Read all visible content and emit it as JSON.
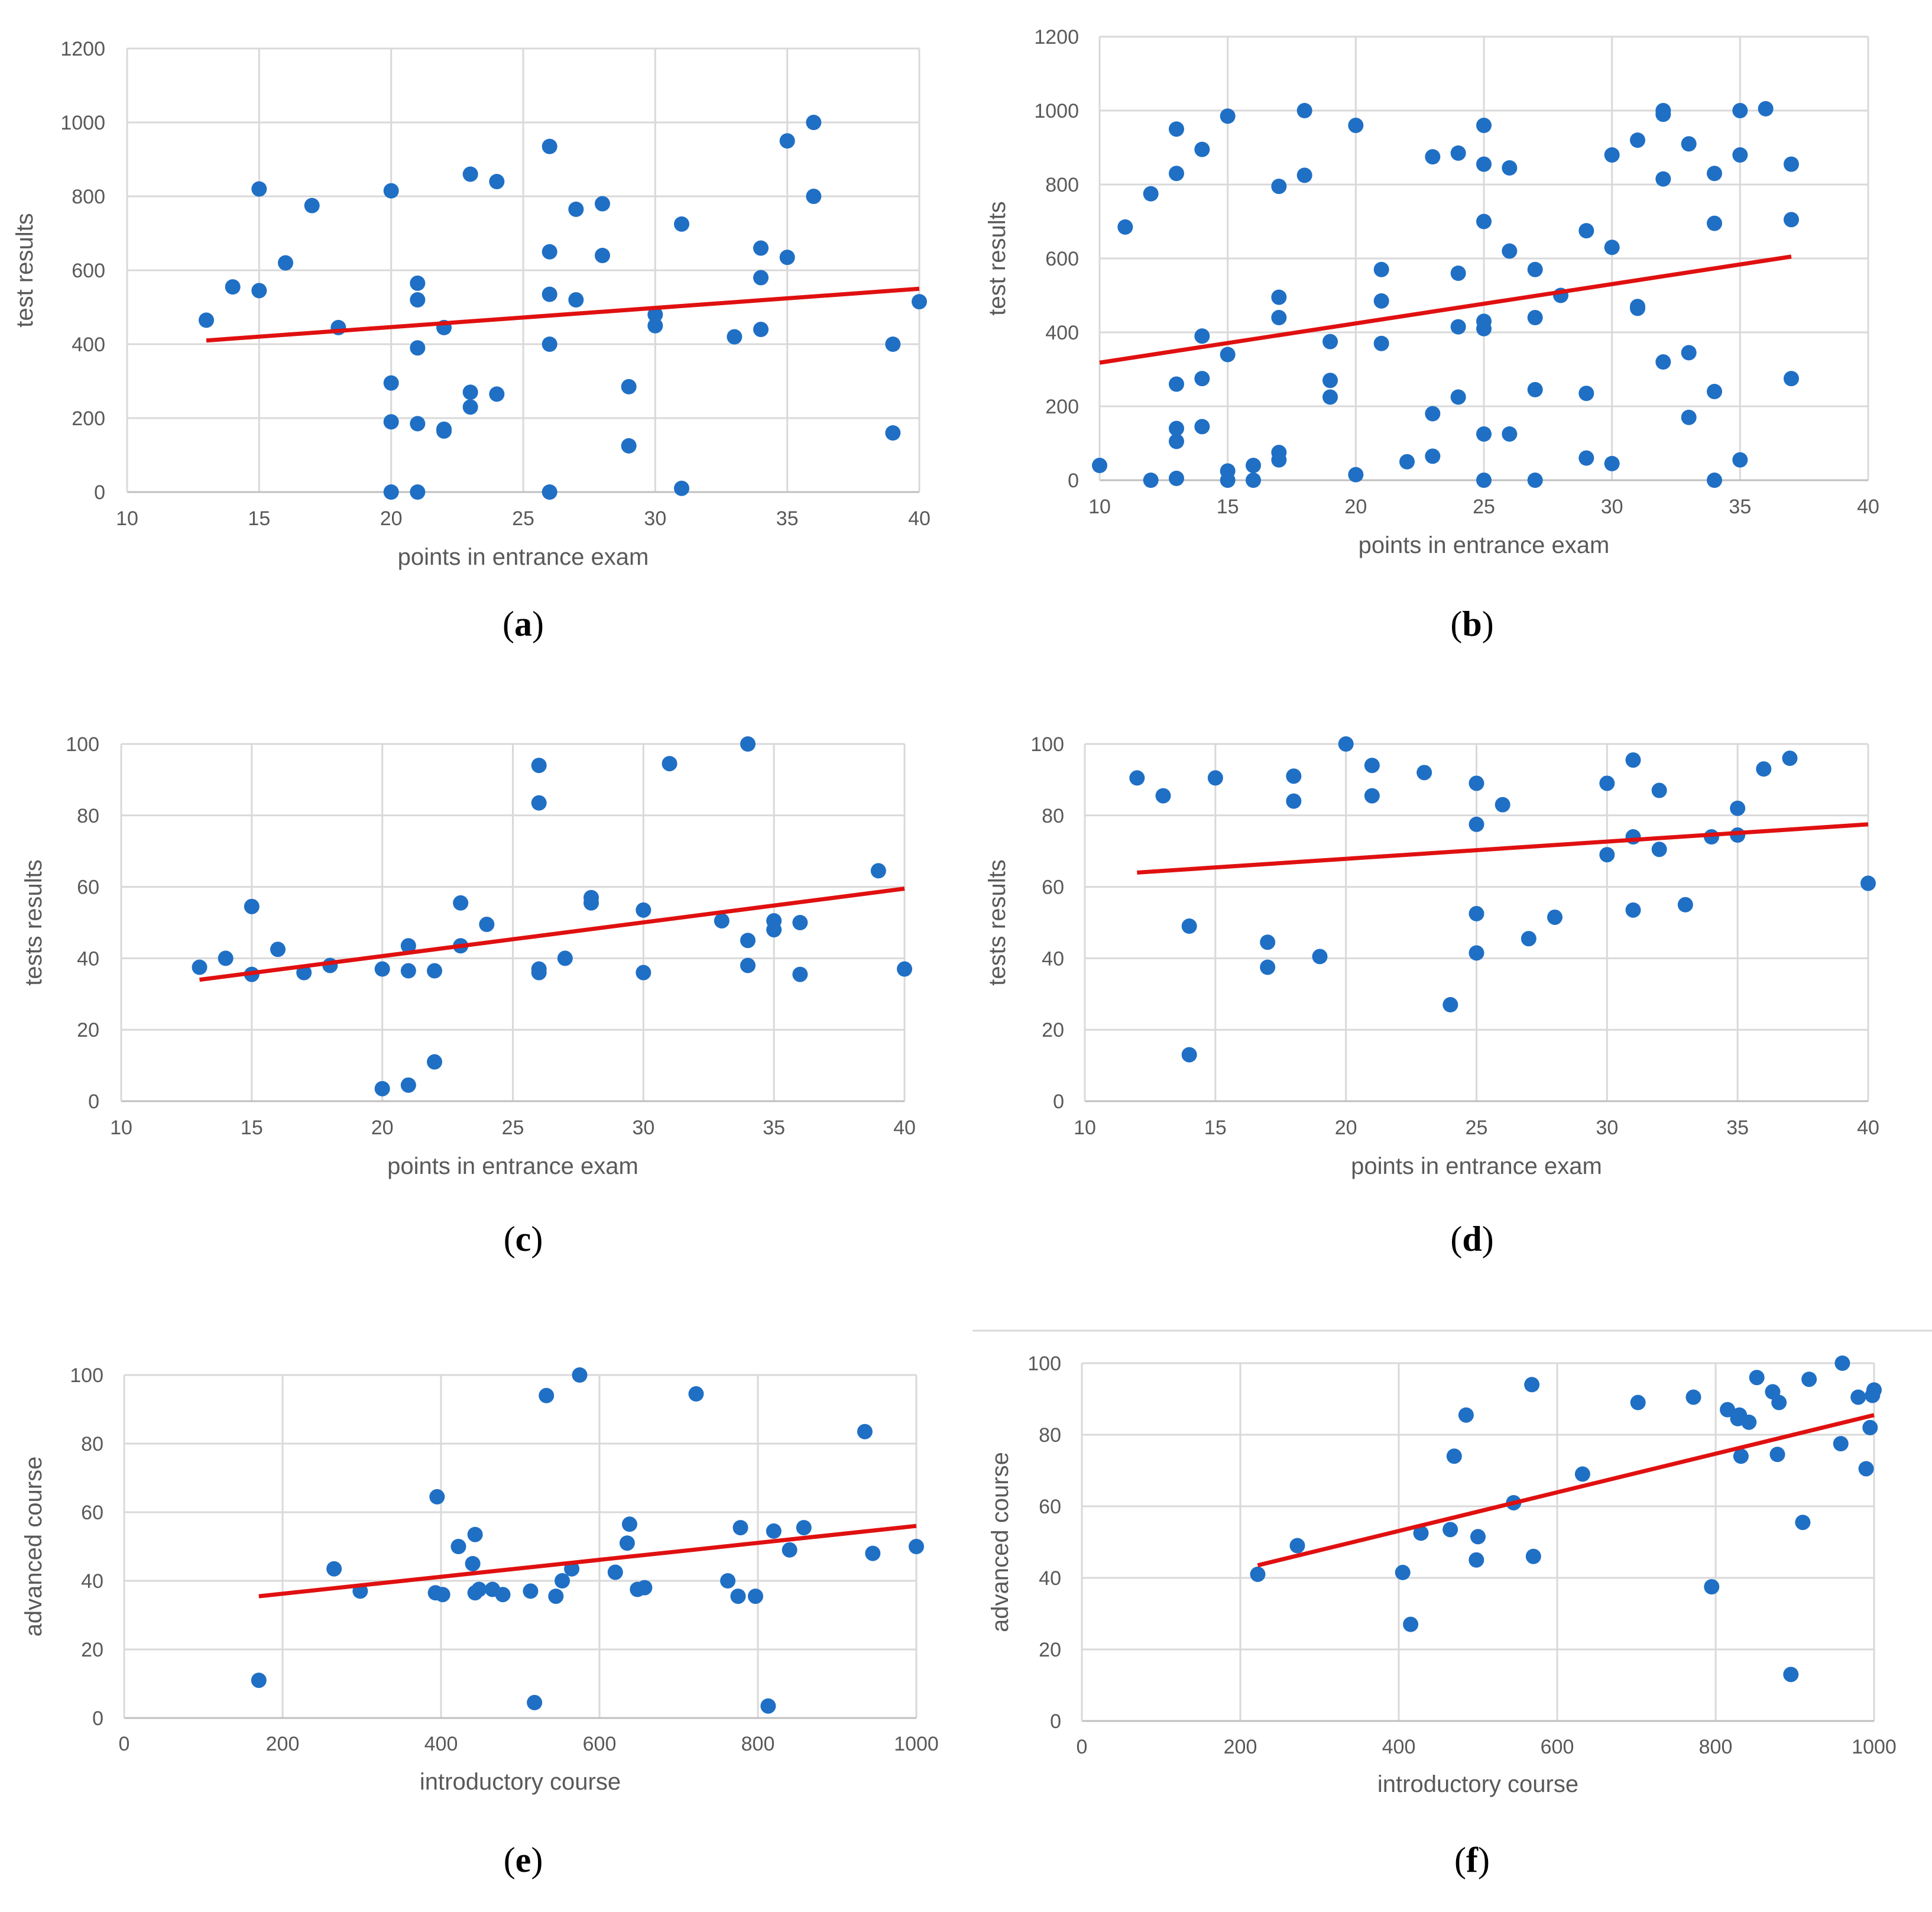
{
  "colors": {
    "point": "#1f6fc5",
    "trendline": "#e01010",
    "grid": "#d9d9d9",
    "text": "#595959"
  },
  "chart_data": [
    {
      "id": "a",
      "label": "a",
      "type": "scatter",
      "xlabel": "points in entrance exam",
      "ylabel": "test results",
      "xlim": [
        10,
        40
      ],
      "ylim": [
        0,
        1200
      ],
      "xticks": [
        10,
        15,
        20,
        25,
        30,
        35,
        40
      ],
      "yticks": [
        0,
        200,
        400,
        600,
        800,
        1000,
        1200
      ],
      "grid": true,
      "trendline": {
        "x": [
          13,
          40
        ],
        "y": [
          410,
          550
        ]
      },
      "points": [
        [
          13,
          465
        ],
        [
          14,
          555
        ],
        [
          15,
          545
        ],
        [
          15,
          820
        ],
        [
          16,
          620
        ],
        [
          17,
          775
        ],
        [
          18,
          445
        ],
        [
          20,
          815
        ],
        [
          20,
          295
        ],
        [
          20,
          190
        ],
        [
          20,
          0
        ],
        [
          21,
          565
        ],
        [
          21,
          520
        ],
        [
          21,
          390
        ],
        [
          21,
          185
        ],
        [
          21,
          0
        ],
        [
          22,
          445
        ],
        [
          22,
          170
        ],
        [
          22,
          165
        ],
        [
          23,
          860
        ],
        [
          23,
          270
        ],
        [
          23,
          230
        ],
        [
          24,
          840
        ],
        [
          24,
          265
        ],
        [
          26,
          935
        ],
        [
          26,
          650
        ],
        [
          26,
          535
        ],
        [
          26,
          400
        ],
        [
          26,
          0
        ],
        [
          27,
          765
        ],
        [
          27,
          520
        ],
        [
          28,
          780
        ],
        [
          28,
          640
        ],
        [
          29,
          285
        ],
        [
          29,
          125
        ],
        [
          30,
          480
        ],
        [
          30,
          450
        ],
        [
          31,
          725
        ],
        [
          31,
          10
        ],
        [
          33,
          420
        ],
        [
          34,
          660
        ],
        [
          34,
          580
        ],
        [
          34,
          440
        ],
        [
          35,
          950
        ],
        [
          35,
          635
        ],
        [
          36,
          1000
        ],
        [
          36,
          800
        ],
        [
          39,
          400
        ],
        [
          39,
          160
        ],
        [
          40,
          515
        ]
      ]
    },
    {
      "id": "b",
      "label": "b",
      "type": "scatter",
      "xlabel": "points in entrance exam",
      "ylabel": "test results",
      "xlim": [
        10,
        40
      ],
      "ylim": [
        0,
        1200
      ],
      "xticks": [
        10,
        15,
        20,
        25,
        30,
        35,
        40
      ],
      "yticks": [
        0,
        200,
        400,
        600,
        800,
        1000,
        1200
      ],
      "grid": true,
      "trendline": {
        "x": [
          10,
          37
        ],
        "y": [
          318,
          605
        ]
      },
      "points": [
        [
          10,
          40
        ],
        [
          11,
          685
        ],
        [
          12,
          775
        ],
        [
          12,
          0
        ],
        [
          13,
          950
        ],
        [
          13,
          830
        ],
        [
          13,
          260
        ],
        [
          13,
          140
        ],
        [
          13,
          105
        ],
        [
          13,
          5
        ],
        [
          14,
          895
        ],
        [
          14,
          390
        ],
        [
          14,
          275
        ],
        [
          14,
          145
        ],
        [
          15,
          985
        ],
        [
          15,
          340
        ],
        [
          15,
          25
        ],
        [
          15,
          0
        ],
        [
          16,
          40
        ],
        [
          16,
          0
        ],
        [
          17,
          795
        ],
        [
          17,
          495
        ],
        [
          17,
          440
        ],
        [
          17,
          75
        ],
        [
          17,
          55
        ],
        [
          18,
          1000
        ],
        [
          18,
          825
        ],
        [
          19,
          375
        ],
        [
          19,
          270
        ],
        [
          19,
          225
        ],
        [
          20,
          960
        ],
        [
          20,
          15
        ],
        [
          21,
          570
        ],
        [
          21,
          485
        ],
        [
          21,
          370
        ],
        [
          22,
          50
        ],
        [
          23,
          875
        ],
        [
          23,
          180
        ],
        [
          23,
          65
        ],
        [
          24,
          885
        ],
        [
          24,
          560
        ],
        [
          24,
          415
        ],
        [
          24,
          225
        ],
        [
          25,
          960
        ],
        [
          25,
          855
        ],
        [
          25,
          700
        ],
        [
          25,
          430
        ],
        [
          25,
          410
        ],
        [
          25,
          125
        ],
        [
          25,
          0
        ],
        [
          26,
          845
        ],
        [
          26,
          620
        ],
        [
          26,
          125
        ],
        [
          27,
          570
        ],
        [
          27,
          440
        ],
        [
          27,
          245
        ],
        [
          27,
          0
        ],
        [
          28,
          500
        ],
        [
          29,
          675
        ],
        [
          29,
          235
        ],
        [
          29,
          60
        ],
        [
          30,
          880
        ],
        [
          30,
          630
        ],
        [
          30,
          45
        ],
        [
          31,
          920
        ],
        [
          31,
          470
        ],
        [
          31,
          465
        ],
        [
          32,
          1000
        ],
        [
          32,
          990
        ],
        [
          32,
          815
        ],
        [
          32,
          320
        ],
        [
          33,
          910
        ],
        [
          33,
          345
        ],
        [
          33,
          170
        ],
        [
          34,
          830
        ],
        [
          34,
          695
        ],
        [
          34,
          240
        ],
        [
          34,
          0
        ],
        [
          35,
          1000
        ],
        [
          35,
          880
        ],
        [
          35,
          55
        ],
        [
          36,
          1005
        ],
        [
          37,
          855
        ],
        [
          37,
          705
        ],
        [
          37,
          275
        ]
      ]
    },
    {
      "id": "c",
      "label": "c",
      "type": "scatter",
      "xlabel": "points in entrance exam",
      "ylabel": "tests results",
      "xlim": [
        10,
        40
      ],
      "ylim": [
        0,
        100
      ],
      "xticks": [
        10,
        15,
        20,
        25,
        30,
        35,
        40
      ],
      "yticks": [
        0,
        20,
        40,
        60,
        80,
        100
      ],
      "grid": true,
      "trendline": {
        "x": [
          13,
          40
        ],
        "y": [
          34,
          59.5
        ]
      },
      "points": [
        [
          13,
          37.5
        ],
        [
          14,
          40
        ],
        [
          15,
          54.5
        ],
        [
          15,
          35.5
        ],
        [
          16,
          42.5
        ],
        [
          17,
          36
        ],
        [
          18,
          38
        ],
        [
          20,
          37
        ],
        [
          20,
          3.5
        ],
        [
          21,
          43.5
        ],
        [
          21,
          36.5
        ],
        [
          21,
          4.5
        ],
        [
          22,
          36.5
        ],
        [
          22,
          11
        ],
        [
          23,
          55.5
        ],
        [
          23,
          43.5
        ],
        [
          24,
          49.5
        ],
        [
          26,
          94
        ],
        [
          26,
          83.5
        ],
        [
          26,
          37
        ],
        [
          26,
          36
        ],
        [
          27,
          40
        ],
        [
          28,
          57
        ],
        [
          28,
          55.5
        ],
        [
          30,
          53.5
        ],
        [
          30,
          36
        ],
        [
          31,
          94.5
        ],
        [
          33,
          50.5
        ],
        [
          34,
          100
        ],
        [
          34,
          45
        ],
        [
          34,
          38
        ],
        [
          35,
          50.5
        ],
        [
          35,
          48
        ],
        [
          36,
          50
        ],
        [
          36,
          35.5
        ],
        [
          39,
          64.5
        ],
        [
          40,
          37
        ]
      ]
    },
    {
      "id": "d",
      "label": "d",
      "type": "scatter",
      "xlabel": "points in entrance exam",
      "ylabel": "tests results",
      "xlim": [
        10,
        40
      ],
      "ylim": [
        0,
        100
      ],
      "xticks": [
        10,
        15,
        20,
        25,
        30,
        35,
        40
      ],
      "yticks": [
        0,
        20,
        40,
        60,
        80,
        100
      ],
      "grid": true,
      "trendline": {
        "x": [
          12,
          40
        ],
        "y": [
          64,
          77.5
        ]
      },
      "points": [
        [
          12,
          90.5
        ],
        [
          13,
          85.5
        ],
        [
          14,
          49
        ],
        [
          14,
          13
        ],
        [
          15,
          90.5
        ],
        [
          17,
          44.5
        ],
        [
          17,
          37.5
        ],
        [
          18,
          91
        ],
        [
          18,
          84
        ],
        [
          19,
          40.5
        ],
        [
          20,
          100
        ],
        [
          21,
          94
        ],
        [
          21,
          85.5
        ],
        [
          23,
          92
        ],
        [
          24,
          27
        ],
        [
          25,
          89
        ],
        [
          25,
          77.5
        ],
        [
          25,
          52.5
        ],
        [
          25,
          41.5
        ],
        [
          26,
          83
        ],
        [
          27,
          45.5
        ],
        [
          28,
          51.5
        ],
        [
          30,
          89
        ],
        [
          30,
          69
        ],
        [
          31,
          95.5
        ],
        [
          31,
          74
        ],
        [
          31,
          53.5
        ],
        [
          32,
          87
        ],
        [
          32,
          70.5
        ],
        [
          33,
          55
        ],
        [
          34,
          74
        ],
        [
          35,
          82
        ],
        [
          35,
          74.5
        ],
        [
          36,
          93
        ],
        [
          37,
          96
        ],
        [
          40,
          61
        ]
      ]
    },
    {
      "id": "e",
      "label": "e",
      "type": "scatter",
      "xlabel": "introductory course",
      "ylabel": "advanced course",
      "xlim": [
        0,
        1000
      ],
      "ylim": [
        0,
        100
      ],
      "xticks": [
        0,
        200,
        400,
        600,
        800,
        1000
      ],
      "yticks": [
        0,
        20,
        40,
        60,
        80,
        100
      ],
      "grid": true,
      "trendline": {
        "x": [
          170,
          1000
        ],
        "y": [
          35.5,
          56
        ]
      },
      "points": [
        [
          170,
          11
        ],
        [
          265,
          43.5
        ],
        [
          298,
          37
        ],
        [
          393,
          36.5
        ],
        [
          395,
          64.5
        ],
        [
          402,
          36
        ],
        [
          422,
          50
        ],
        [
          440,
          45
        ],
        [
          443,
          53.5
        ],
        [
          443,
          36.5
        ],
        [
          448,
          37.5
        ],
        [
          465,
          37.5
        ],
        [
          478,
          36
        ],
        [
          513,
          37
        ],
        [
          518,
          4.5
        ],
        [
          533,
          94
        ],
        [
          545,
          35.5
        ],
        [
          553,
          40
        ],
        [
          565,
          43.5
        ],
        [
          575,
          100
        ],
        [
          620,
          42.5
        ],
        [
          635,
          51
        ],
        [
          638,
          56.5
        ],
        [
          648,
          37.5
        ],
        [
          657,
          38
        ],
        [
          722,
          94.5
        ],
        [
          762,
          40
        ],
        [
          775,
          35.5
        ],
        [
          778,
          55.5
        ],
        [
          797,
          35.5
        ],
        [
          813,
          3.5
        ],
        [
          820,
          54.5
        ],
        [
          840,
          49
        ],
        [
          858,
          55.5
        ],
        [
          935,
          83.5
        ],
        [
          945,
          48
        ],
        [
          1000,
          50
        ]
      ]
    },
    {
      "id": "f",
      "label": "f",
      "type": "scatter",
      "xlabel": "introductory course",
      "ylabel": "advanced course",
      "xlim": [
        0,
        1000
      ],
      "ylim": [
        0,
        100
      ],
      "xticks": [
        0,
        200,
        400,
        600,
        800,
        1000
      ],
      "yticks": [
        0,
        20,
        40,
        60,
        80,
        100
      ],
      "grid": true,
      "trendline": {
        "x": [
          222,
          1000
        ],
        "y": [
          43.5,
          85.5
        ]
      },
      "points": [
        [
          222,
          41
        ],
        [
          272,
          49
        ],
        [
          405,
          41.5
        ],
        [
          415,
          27
        ],
        [
          428,
          52.5
        ],
        [
          465,
          53.5
        ],
        [
          470,
          74
        ],
        [
          485,
          85.5
        ],
        [
          498,
          45
        ],
        [
          500,
          51.5
        ],
        [
          545,
          61
        ],
        [
          568,
          94
        ],
        [
          570,
          46
        ],
        [
          632,
          69
        ],
        [
          702,
          89
        ],
        [
          772,
          90.5
        ],
        [
          795,
          37.5
        ],
        [
          815,
          87
        ],
        [
          828,
          84.5
        ],
        [
          830,
          85.5
        ],
        [
          832,
          74
        ],
        [
          842,
          83.5
        ],
        [
          852,
          96
        ],
        [
          872,
          92
        ],
        [
          878,
          74.5
        ],
        [
          880,
          89
        ],
        [
          895,
          13
        ],
        [
          910,
          55.5
        ],
        [
          918,
          95.5
        ],
        [
          958,
          77.5
        ],
        [
          960,
          100
        ],
        [
          980,
          90.5
        ],
        [
          990,
          70.5
        ],
        [
          995,
          82
        ],
        [
          998,
          91
        ],
        [
          1000,
          92.5
        ]
      ]
    }
  ]
}
